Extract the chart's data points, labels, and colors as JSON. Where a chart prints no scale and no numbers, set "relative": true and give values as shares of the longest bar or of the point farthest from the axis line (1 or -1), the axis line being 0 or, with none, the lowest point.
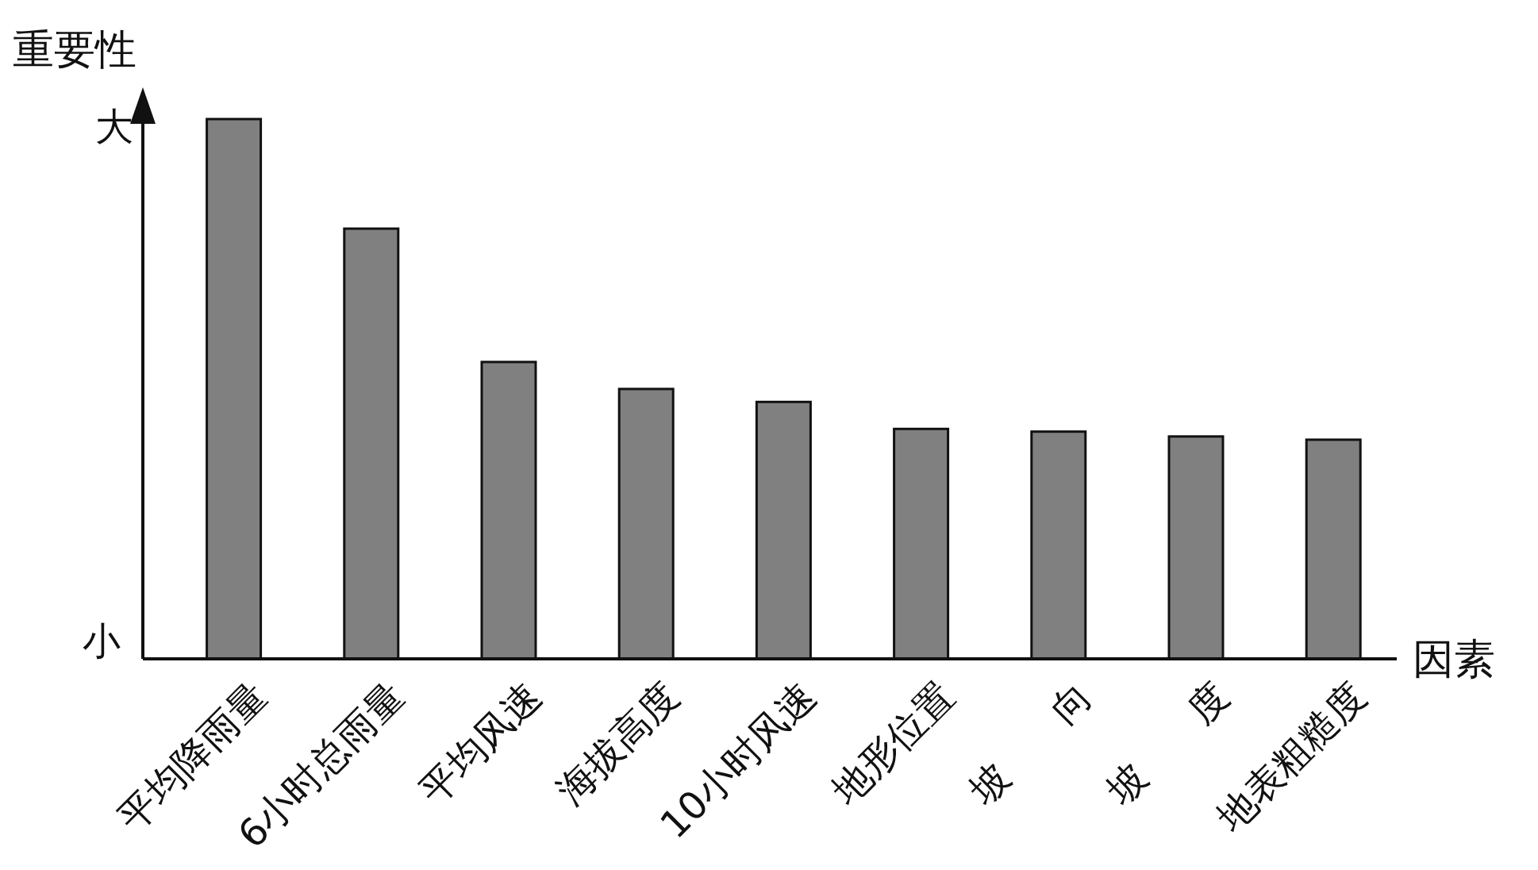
{
  "chart_data": {
    "type": "bar",
    "relative": true,
    "xlabel": "因素",
    "ylabel": "重要性",
    "categories": [
      "平均降雨量",
      "6小时总雨量",
      "平均风速",
      "海拔高度",
      "10小时风速",
      "地形位置",
      "坡　　向",
      "坡　　度",
      "地表粗糙度"
    ],
    "values": [
      1,
      0.797,
      0.55,
      0.5,
      0.476,
      0.426,
      0.421,
      0.412,
      0.406
    ],
    "color": "#808080",
    "annotations": [
      "大",
      "小"
    ]
  }
}
